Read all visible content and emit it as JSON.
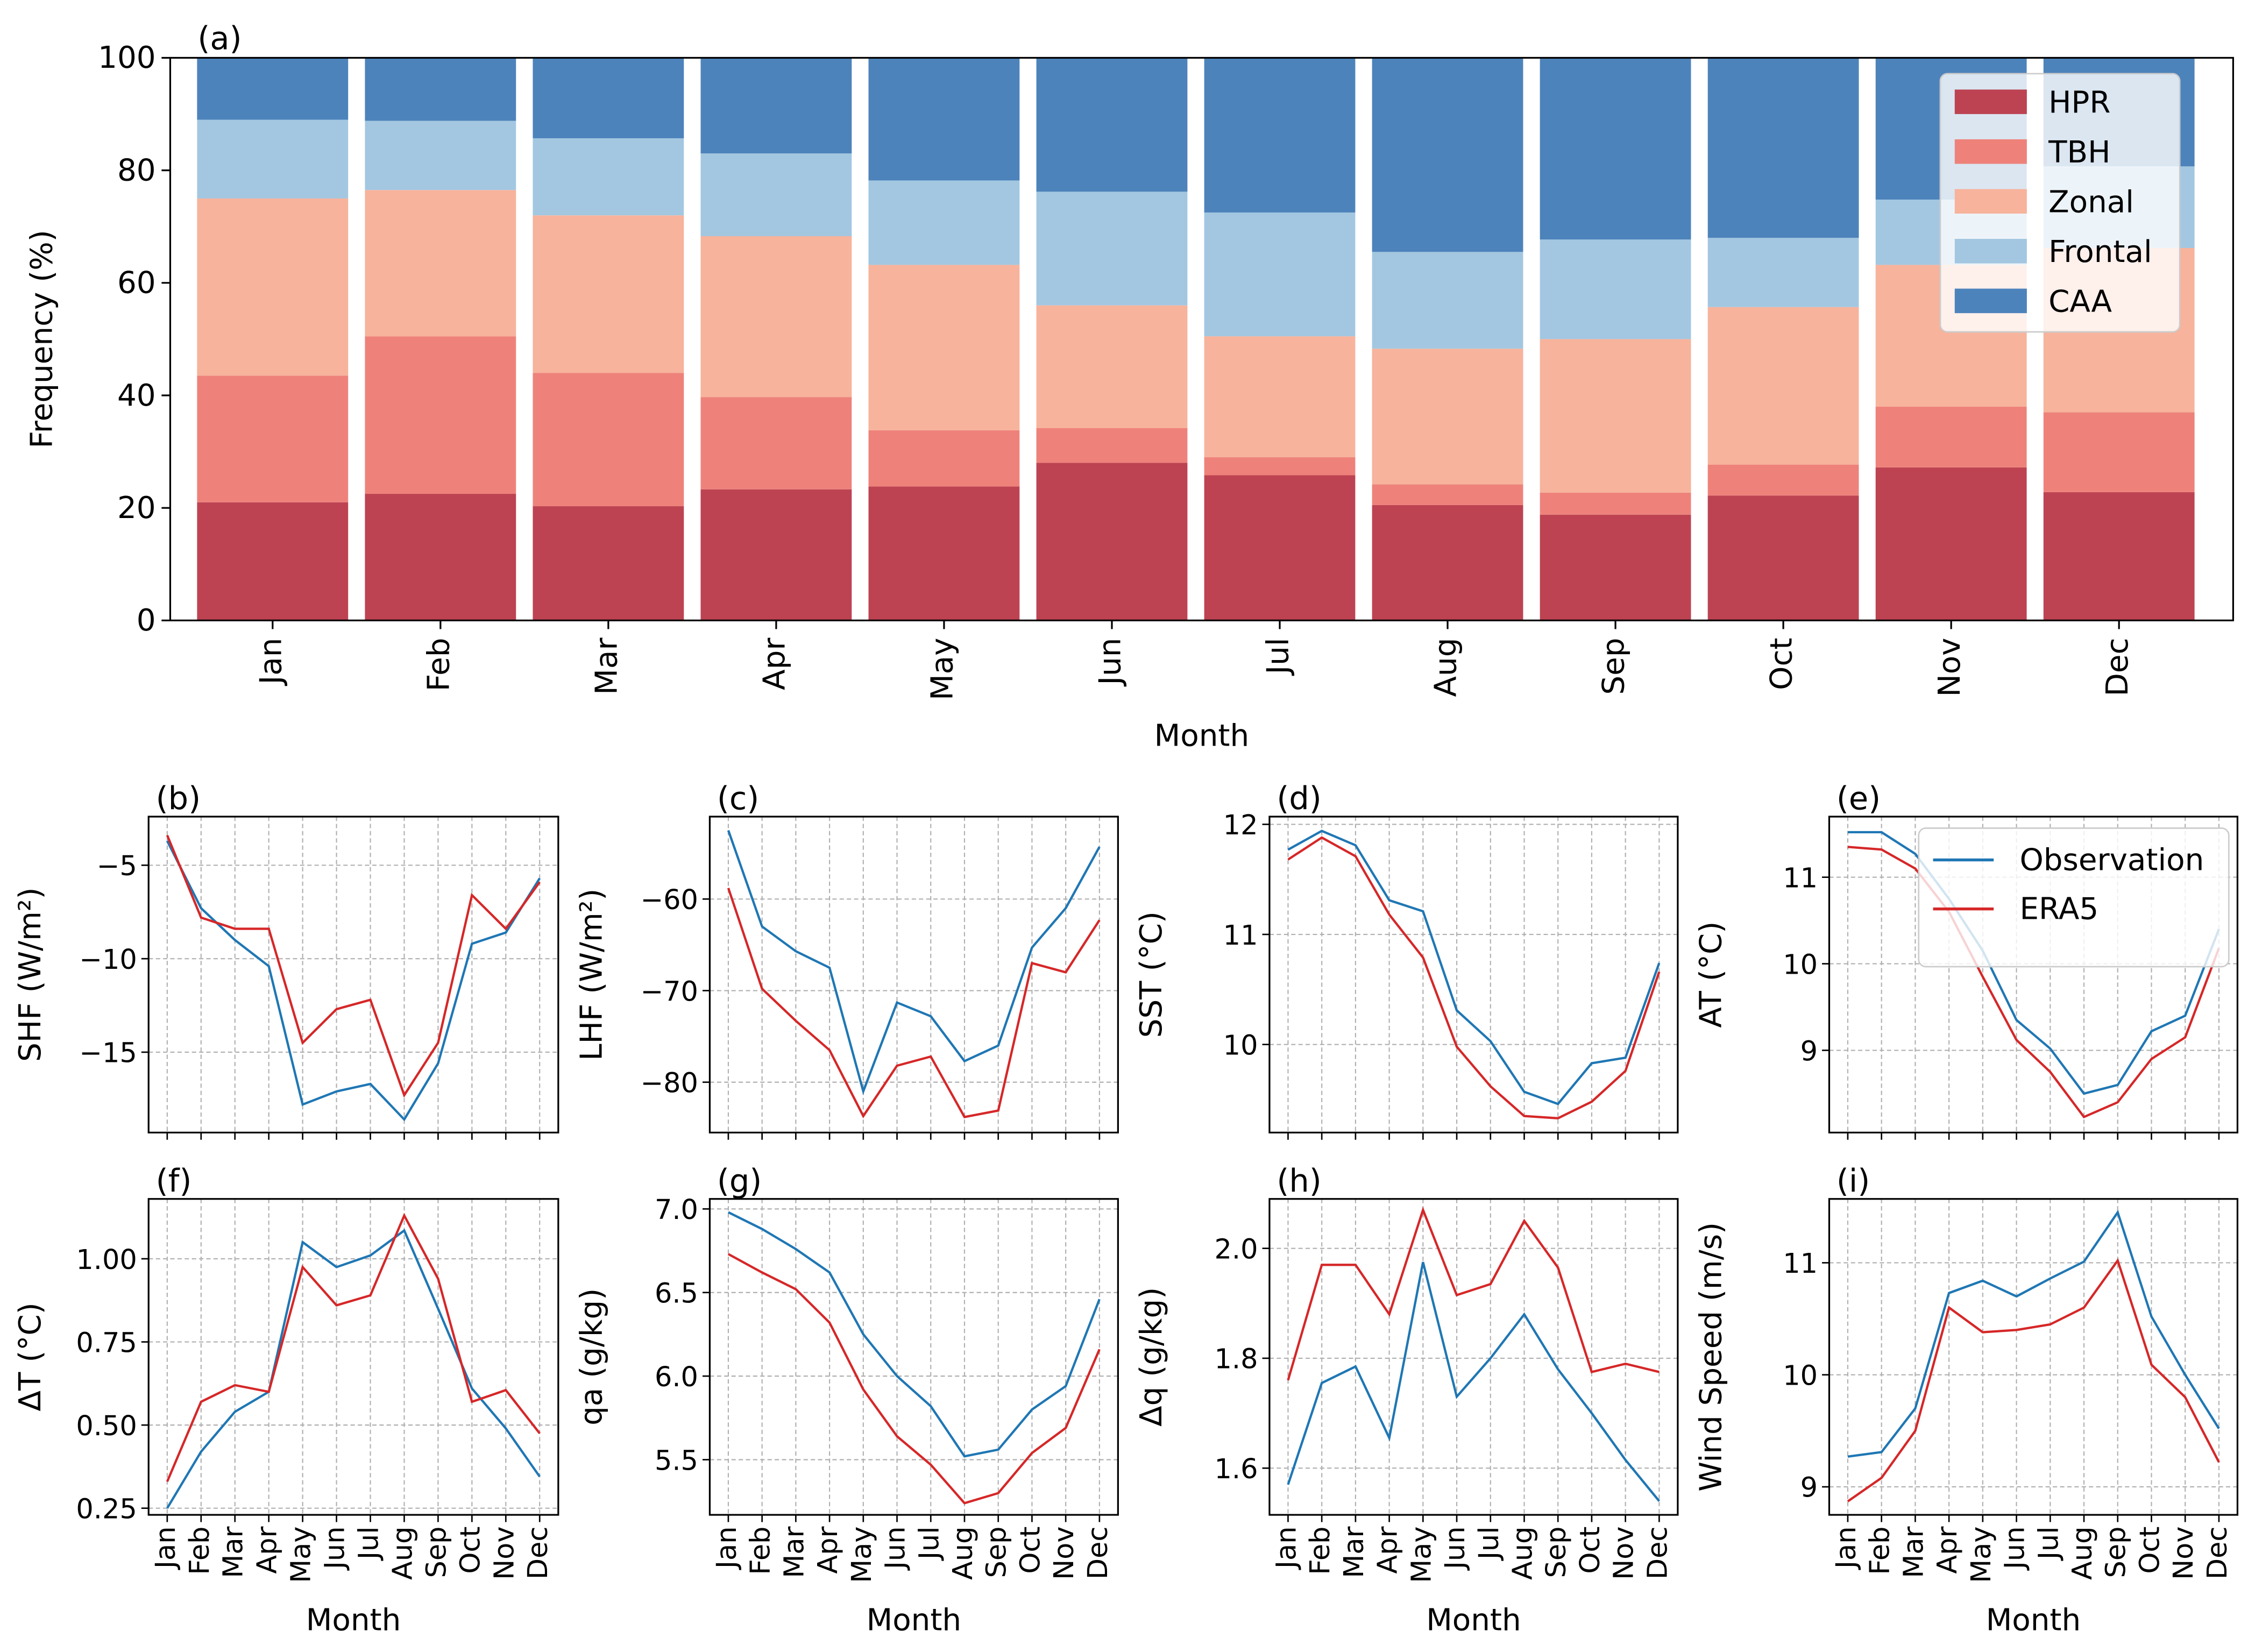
{
  "chart_data": [
    {
      "panel": "(a)",
      "type": "bar",
      "stacked": true,
      "categories": [
        "Jan",
        "Feb",
        "Mar",
        "Apr",
        "May",
        "Jun",
        "Jul",
        "Aug",
        "Sep",
        "Oct",
        "Nov",
        "Dec"
      ],
      "xlabel": "Month",
      "ylabel": "Frequency (%)",
      "ylim": [
        0,
        100
      ],
      "yticks": [
        "0",
        "20",
        "40",
        "60",
        "80",
        "100"
      ],
      "legend_position": "top-right",
      "series": [
        {
          "name": "HPR",
          "color": "#bd4352",
          "values": [
            21.0,
            22.5,
            20.3,
            23.3,
            23.8,
            28.0,
            25.8,
            20.5,
            18.8,
            22.2,
            27.2,
            22.8
          ]
        },
        {
          "name": "TBH",
          "color": "#ee827b",
          "values": [
            22.5,
            28.0,
            23.7,
            16.4,
            10.0,
            6.2,
            3.2,
            3.7,
            3.9,
            5.5,
            10.8,
            14.2
          ]
        },
        {
          "name": "Zonal",
          "color": "#f7b39c",
          "values": [
            31.5,
            26.0,
            28.0,
            28.6,
            29.4,
            21.8,
            21.5,
            24.1,
            27.3,
            28.0,
            25.2,
            29.2
          ]
        },
        {
          "name": "Frontal",
          "color": "#a3c7e1",
          "values": [
            14.0,
            12.3,
            13.7,
            14.7,
            15.0,
            20.2,
            22.0,
            17.2,
            17.7,
            12.3,
            11.6,
            14.5
          ]
        },
        {
          "name": "CAA",
          "color": "#4d83bb",
          "values": [
            11.0,
            11.2,
            14.3,
            17.0,
            21.8,
            23.8,
            27.5,
            34.5,
            32.3,
            32.0,
            25.2,
            19.3
          ]
        }
      ]
    },
    {
      "panel": "(b)",
      "type": "line",
      "ylabel": "SHF (W/m²)",
      "ylim": [
        -19.3,
        -2.4
      ],
      "yticks": [
        -15,
        -10,
        -5
      ],
      "ytick_labels": [
        "−15",
        "−10",
        "−5"
      ],
      "series": [
        {
          "name": "Observation",
          "values": [
            -3.7,
            -7.3,
            -9.0,
            -10.4,
            -17.8,
            -17.1,
            -16.7,
            -18.6,
            -15.6,
            -9.2,
            -8.6,
            -5.7
          ]
        },
        {
          "name": "ERA5",
          "values": [
            -3.4,
            -7.8,
            -8.4,
            -8.4,
            -14.5,
            -12.7,
            -12.2,
            -17.3,
            -14.5,
            -6.6,
            -8.4,
            -5.9
          ]
        }
      ]
    },
    {
      "panel": "(c)",
      "type": "line",
      "ylabel": "LHF (W/m²)",
      "ylim": [
        -85.5,
        -51
      ],
      "yticks": [
        -80,
        -70,
        -60
      ],
      "ytick_labels": [
        "−80",
        "−70",
        "−60"
      ],
      "series": [
        {
          "name": "Observation",
          "values": [
            -52.5,
            -63.0,
            -65.7,
            -67.5,
            -81.0,
            -71.3,
            -72.8,
            -77.7,
            -76.0,
            -65.3,
            -61.0,
            -54.3
          ]
        },
        {
          "name": "ERA5",
          "values": [
            -58.8,
            -69.8,
            -73.3,
            -76.5,
            -83.7,
            -78.2,
            -77.2,
            -83.8,
            -83.1,
            -67.0,
            -68.0,
            -62.3
          ]
        }
      ]
    },
    {
      "panel": "(d)",
      "type": "line",
      "ylabel": "SST (°C)",
      "ylim": [
        9.2,
        12.07
      ],
      "yticks": [
        10,
        11,
        12
      ],
      "ytick_labels": [
        "10",
        "11",
        "12"
      ],
      "series": [
        {
          "name": "Observation",
          "values": [
            11.77,
            11.94,
            11.81,
            11.31,
            11.21,
            10.31,
            10.03,
            9.57,
            9.46,
            9.83,
            9.88,
            10.74
          ]
        },
        {
          "name": "ERA5",
          "values": [
            11.68,
            11.88,
            11.71,
            11.18,
            10.79,
            9.98,
            9.62,
            9.35,
            9.33,
            9.48,
            9.76,
            10.66
          ]
        }
      ]
    },
    {
      "panel": "(e)",
      "type": "line",
      "ylabel": "AT (°C)",
      "ylim": [
        8.05,
        11.7
      ],
      "yticks": [
        9,
        10,
        11
      ],
      "ytick_labels": [
        "9",
        "10",
        "11"
      ],
      "legend_position": "top-right",
      "series": [
        {
          "name": "Observation",
          "values": [
            11.52,
            11.52,
            11.27,
            10.75,
            10.15,
            9.35,
            9.02,
            8.5,
            8.6,
            9.22,
            9.4,
            10.4
          ]
        },
        {
          "name": "ERA5",
          "values": [
            11.35,
            11.32,
            11.1,
            10.6,
            9.85,
            9.12,
            8.75,
            8.23,
            8.4,
            8.9,
            9.15,
            10.18
          ]
        }
      ]
    },
    {
      "panel": "(f)",
      "type": "line",
      "ylabel": "ΔT (°C)",
      "xlabel": "Month",
      "ylim": [
        0.23,
        1.18
      ],
      "yticks": [
        0.25,
        0.5,
        0.75,
        1.0
      ],
      "ytick_labels": [
        "0.25",
        "0.50",
        "0.75",
        "1.00"
      ],
      "series": [
        {
          "name": "Observation",
          "values": [
            0.25,
            0.42,
            0.54,
            0.6,
            1.05,
            0.975,
            1.01,
            1.085,
            0.85,
            0.61,
            0.49,
            0.345
          ]
        },
        {
          "name": "ERA5",
          "values": [
            0.33,
            0.57,
            0.62,
            0.6,
            0.975,
            0.86,
            0.89,
            1.13,
            0.94,
            0.57,
            0.605,
            0.475
          ]
        }
      ]
    },
    {
      "panel": "(g)",
      "type": "line",
      "ylabel": "qa (g/kg)",
      "ylabel_main": "q",
      "ylabel_sub": "a",
      "ylabel_rest": " (g/kg)",
      "xlabel": "Month",
      "ylim": [
        5.17,
        7.06
      ],
      "yticks": [
        5.5,
        6.0,
        6.5,
        7.0
      ],
      "ytick_labels": [
        "5.5",
        "6.0",
        "6.5",
        "7.0"
      ],
      "series": [
        {
          "name": "Observation",
          "values": [
            6.98,
            6.88,
            6.76,
            6.62,
            6.25,
            6.0,
            5.82,
            5.52,
            5.56,
            5.8,
            5.94,
            6.46
          ]
        },
        {
          "name": "ERA5",
          "values": [
            6.73,
            6.62,
            6.52,
            6.32,
            5.92,
            5.64,
            5.47,
            5.24,
            5.3,
            5.54,
            5.69,
            6.16
          ]
        }
      ]
    },
    {
      "panel": "(h)",
      "type": "line",
      "ylabel": "Δq (g/kg)",
      "xlabel": "Month",
      "ylim": [
        1.515,
        2.09
      ],
      "yticks": [
        1.6,
        1.8,
        2.0
      ],
      "ytick_labels": [
        "1.6",
        "1.8",
        "2.0"
      ],
      "series": [
        {
          "name": "Observation",
          "values": [
            1.57,
            1.755,
            1.785,
            1.655,
            1.975,
            1.73,
            1.8,
            1.88,
            1.78,
            1.7,
            1.615,
            1.54
          ]
        },
        {
          "name": "ERA5",
          "values": [
            1.76,
            1.97,
            1.97,
            1.88,
            2.07,
            1.915,
            1.935,
            2.05,
            1.965,
            1.775,
            1.79,
            1.775
          ]
        }
      ]
    },
    {
      "panel": "(i)",
      "type": "line",
      "ylabel": "Wind Speed (m/s)",
      "xlabel": "Month",
      "ylim": [
        8.75,
        11.57
      ],
      "yticks": [
        9,
        10,
        11
      ],
      "ytick_labels": [
        "9",
        "10",
        "11"
      ],
      "series": [
        {
          "name": "Observation",
          "values": [
            9.27,
            9.31,
            9.7,
            10.73,
            10.84,
            10.7,
            10.86,
            11.01,
            11.45,
            10.52,
            10.0,
            9.52
          ]
        },
        {
          "name": "ERA5",
          "values": [
            8.87,
            9.08,
            9.5,
            10.6,
            10.38,
            10.4,
            10.45,
            10.6,
            11.02,
            10.09,
            9.8,
            9.22
          ]
        }
      ]
    }
  ],
  "line_legend": [
    {
      "name": "Observation",
      "color": "#1f77b4"
    },
    {
      "name": "ERA5",
      "color": "#d62728"
    }
  ],
  "months": [
    "Jan",
    "Feb",
    "Mar",
    "Apr",
    "May",
    "Jun",
    "Jul",
    "Aug",
    "Sep",
    "Oct",
    "Nov",
    "Dec"
  ]
}
